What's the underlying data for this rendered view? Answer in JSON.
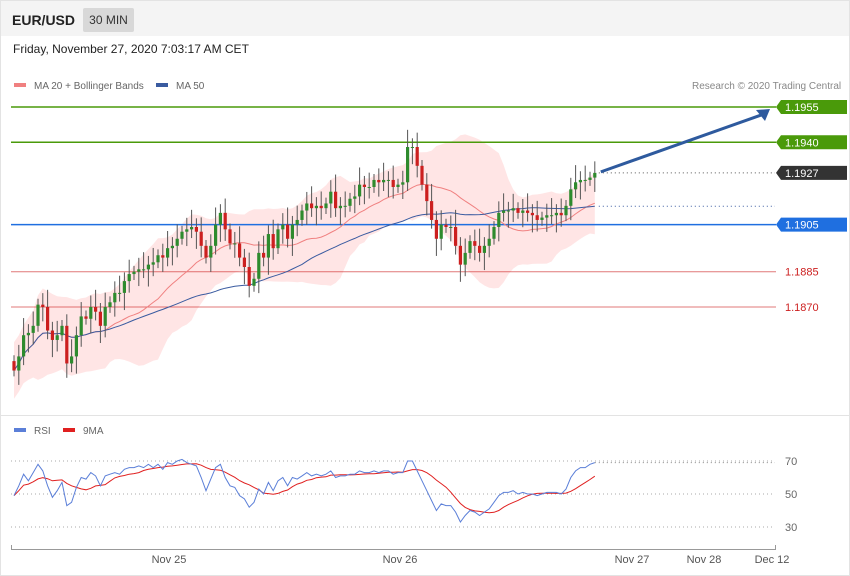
{
  "header": {
    "symbol": "EUR/USD",
    "timeframe": "30 MIN",
    "datetime": "Friday, November 27, 2020 7:03:17 AM CET",
    "credit": "Research © 2020 Trading Central"
  },
  "legend": {
    "ma20": "MA 20 + Bollinger Bands",
    "ma50": "MA 50",
    "rsi": "RSI",
    "ma9": "9MA"
  },
  "colors": {
    "ma20": "#f08080",
    "ma50": "#3a5ba0",
    "band_fill": "#ffe0e0",
    "bull": "#2e8b2e",
    "bear": "#cc1f1f",
    "resistance": "#4a9a0a",
    "pivot": "#1f6fe0",
    "support": "#cc1f1f",
    "last": "#333333",
    "arrow": "#2e5a9e",
    "rsi": "#5b7fd8",
    "rsi_ma": "#e02020"
  },
  "chart_data": [
    {
      "type": "candlestick",
      "title": "EUR/USD 30 MIN",
      "x_labels": [
        "Nov 25",
        "Nov 26",
        "Nov 27",
        "Nov 28",
        "Dec 12"
      ],
      "ylim": [
        1.1835,
        1.1967
      ],
      "levels": [
        {
          "value": 1.1955,
          "label": "1.1955",
          "kind": "resistance"
        },
        {
          "value": 1.194,
          "label": "1.1940",
          "kind": "resistance"
        },
        {
          "value": 1.1927,
          "label": "1.1927",
          "kind": "last"
        },
        {
          "value": 1.1905,
          "label": "1.1905",
          "kind": "pivot"
        },
        {
          "value": 1.1885,
          "label": "1.1885",
          "kind": "support"
        },
        {
          "value": 1.187,
          "label": "1.1870",
          "kind": "support"
        }
      ],
      "close": [
        1.1843,
        1.1849,
        1.1858,
        1.1859,
        1.1862,
        1.1871,
        1.187,
        1.186,
        1.1856,
        1.1858,
        1.1862,
        1.1846,
        1.1849,
        1.1858,
        1.1866,
        1.1865,
        1.187,
        1.1868,
        1.1862,
        1.187,
        1.1872,
        1.1876,
        1.1876,
        1.1881,
        1.1884,
        1.1885,
        1.1886,
        1.1886,
        1.1888,
        1.1889,
        1.1892,
        1.1891,
        1.1895,
        1.1896,
        1.1899,
        1.1902,
        1.1903,
        1.1904,
        1.1902,
        1.1896,
        1.1891,
        1.1896,
        1.1905,
        1.191,
        1.1903,
        1.1897,
        1.1897,
        1.1891,
        1.1887,
        1.1879,
        1.1882,
        1.1893,
        1.1891,
        1.1901,
        1.1895,
        1.1903,
        1.1905,
        1.1899,
        1.1905,
        1.1907,
        1.1911,
        1.1914,
        1.1912,
        1.1913,
        1.1912,
        1.1914,
        1.1919,
        1.1912,
        1.1913,
        1.1913,
        1.1916,
        1.1917,
        1.1922,
        1.1921,
        1.1921,
        1.1924,
        1.1923,
        1.1924,
        1.1924,
        1.1921,
        1.1922,
        1.1923,
        1.1938,
        1.1938,
        1.193,
        1.1922,
        1.1915,
        1.1907,
        1.1899,
        1.1905,
        1.1904,
        1.1904,
        1.1896,
        1.1888,
        1.1893,
        1.1898,
        1.1896,
        1.1893,
        1.1896,
        1.1899,
        1.1904,
        1.191,
        1.1911,
        1.1911,
        1.1912,
        1.191,
        1.1911,
        1.191,
        1.1909,
        1.1907,
        1.1908,
        1.1909,
        1.1909,
        1.191,
        1.1909,
        1.1913,
        1.192,
        1.1923,
        1.1924,
        1.1924,
        1.1925,
        1.1927
      ],
      "rsi": [
        49,
        55,
        62,
        58,
        63,
        68,
        64,
        55,
        48,
        52,
        57,
        43,
        45,
        54,
        60,
        59,
        63,
        61,
        55,
        61,
        62,
        63,
        62,
        65,
        66,
        66,
        67,
        66,
        68,
        66,
        68,
        65,
        69,
        68,
        70,
        71,
        69,
        68,
        67,
        60,
        52,
        59,
        66,
        68,
        60,
        55,
        54,
        49,
        47,
        42,
        45,
        53,
        50,
        57,
        52,
        58,
        60,
        55,
        60,
        59,
        61,
        63,
        61,
        62,
        61,
        62,
        64,
        60,
        61,
        61,
        62,
        62,
        64,
        63,
        63,
        64,
        63,
        64,
        64,
        62,
        63,
        63,
        70,
        70,
        64,
        58,
        52,
        46,
        40,
        44,
        43,
        43,
        39,
        33,
        37,
        40,
        39,
        37,
        39,
        41,
        45,
        49,
        51,
        51,
        52,
        50,
        51,
        50,
        50,
        49,
        50,
        51,
        51,
        51,
        50,
        53,
        60,
        64,
        66,
        66,
        68,
        69
      ],
      "rsi_levels": [
        70,
        50,
        30
      ]
    }
  ]
}
